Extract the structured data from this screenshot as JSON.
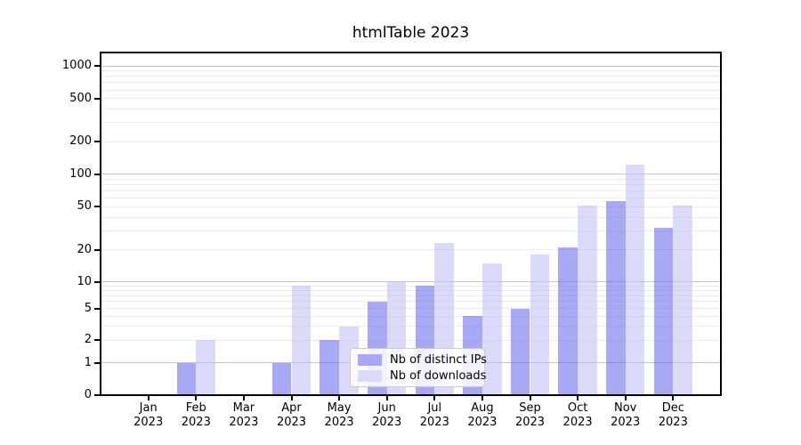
{
  "chart_data": {
    "type": "bar",
    "title": "htmlTable 2023",
    "x_months": [
      "Jan",
      "Feb",
      "Mar",
      "Apr",
      "May",
      "Jun",
      "Jul",
      "Aug",
      "Sep",
      "Oct",
      "Nov",
      "Dec"
    ],
    "x_year": "2023",
    "series": [
      {
        "name": "Nb of distinct IPs",
        "color": "#a8a8f4",
        "fill": "rgba(97,97,235,0.55)",
        "values": [
          0,
          1,
          0,
          1,
          2,
          6,
          9,
          4,
          5,
          21,
          56,
          32
        ]
      },
      {
        "name": "Nb of downloads",
        "color": "#dbdbf9",
        "fill": "rgba(190,190,244,0.55)",
        "values": [
          0,
          2,
          0,
          9,
          3,
          10,
          23,
          15,
          18,
          51,
          123,
          51
        ]
      }
    ],
    "y_axis": {
      "ticks": [
        0,
        1,
        2,
        5,
        10,
        20,
        50,
        100,
        200,
        500,
        1000
      ],
      "scale": "log-like",
      "range": [
        0,
        1000
      ]
    },
    "grid": {
      "horizontal": true,
      "minor": true
    },
    "legend_position": "inside-bottom-center"
  }
}
